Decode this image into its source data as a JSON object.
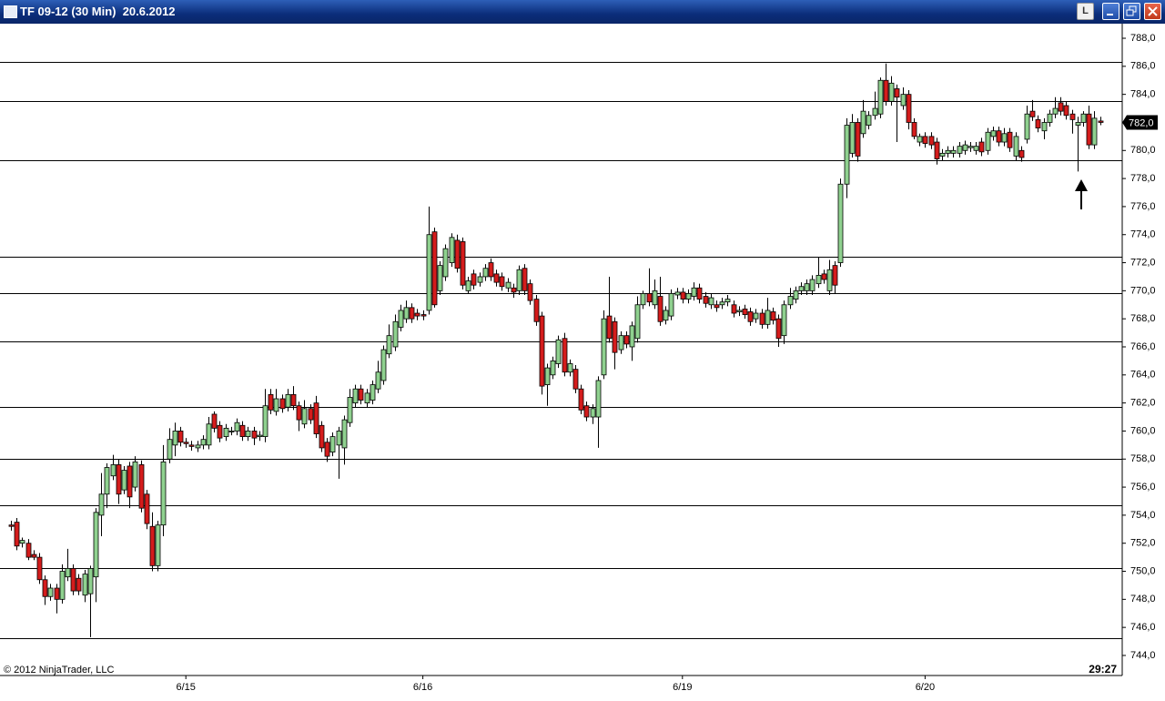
{
  "window": {
    "title": "TF 09-12 (30 Min)  20.6.2012",
    "button_label": "L"
  },
  "chart_data": {
    "type": "candlestick",
    "watermark": "© 2012 NinjaTrader, LLC",
    "time_remaining": "29:27",
    "up_color": "#8fd18f",
    "down_color": "#d41c1c",
    "categories": [
      null,
      null,
      null,
      null,
      null,
      null,
      null,
      null,
      null,
      null,
      null,
      null,
      null,
      null,
      null,
      null,
      null,
      null,
      null,
      null,
      null,
      null,
      null,
      null,
      null,
      null,
      null,
      null,
      null,
      null,
      null,
      "6/15",
      null,
      null,
      null,
      null,
      null,
      null,
      null,
      null,
      null,
      null,
      null,
      null,
      null,
      null,
      null,
      null,
      null,
      null,
      null,
      null,
      null,
      null,
      null,
      null,
      null,
      null,
      null,
      null,
      null,
      null,
      null,
      null,
      null,
      null,
      null,
      null,
      null,
      null,
      null,
      null,
      null,
      "6/16",
      null,
      null,
      null,
      null,
      null,
      null,
      null,
      null,
      null,
      null,
      null,
      null,
      null,
      null,
      null,
      null,
      null,
      null,
      null,
      null,
      null,
      null,
      null,
      null,
      null,
      null,
      null,
      null,
      null,
      null,
      null,
      null,
      null,
      null,
      null,
      null,
      null,
      null,
      null,
      null,
      null,
      null,
      null,
      null,
      null,
      "6/19",
      null,
      null,
      null,
      null,
      null,
      null,
      null,
      null,
      null,
      null,
      null,
      null,
      null,
      null,
      null,
      null,
      null,
      null,
      null,
      null,
      null,
      null,
      null,
      null,
      null,
      null,
      null,
      null,
      null,
      null,
      null,
      null,
      null,
      null,
      null,
      null,
      null,
      null,
      null,
      null,
      null,
      null,
      "6/20",
      null,
      null,
      null,
      null,
      null,
      null,
      null,
      null,
      null,
      null,
      null,
      null,
      null,
      null,
      null,
      null,
      null,
      null,
      null,
      null,
      null,
      null,
      null,
      null,
      null,
      null,
      null,
      null,
      null,
      null,
      null
    ],
    "open": [
      753.3,
      753.5,
      752.0,
      752.0,
      751.2,
      751.0,
      749.4,
      748.2,
      748.8,
      748.0,
      749.6,
      750.2,
      749.5,
      748.3,
      748.4,
      749.6,
      754.0,
      755.5,
      756.8,
      757.6,
      755.8,
      757.5,
      756.0,
      757.6,
      755.5,
      753.2,
      750.4,
      753.3,
      758.0,
      759.0,
      760.0,
      759.2,
      759.0,
      758.8,
      759.0,
      759.0,
      761.2,
      760.4,
      759.6,
      760.0,
      760.0,
      760.4,
      759.6,
      760.0,
      759.6,
      759.6,
      762.6,
      761.4,
      762.3,
      761.7,
      762.6,
      761.8,
      760.5,
      761.6,
      762.0,
      760.4,
      759.2,
      758.5,
      759.0,
      758.8,
      760.6,
      762.0,
      763.0,
      762.0,
      762.2,
      763.0,
      763.6,
      765.5,
      766.0,
      767.4,
      768.0,
      768.8,
      768.4,
      768.3,
      768.6,
      774.2,
      770.0,
      771.0,
      772.0,
      773.6,
      773.5,
      770.0,
      771.2,
      770.6,
      771.0,
      772.0,
      771.2,
      771.0,
      770.2,
      770.2,
      770.0,
      771.6,
      770.5,
      769.4,
      768.2,
      763.3,
      764.0,
      764.8,
      766.6,
      764.2,
      764.4,
      763.0,
      761.8,
      761.0,
      761.0,
      764.0,
      768.2,
      767.8,
      765.8,
      766.8,
      766.0,
      766.6,
      769.0,
      769.8,
      769.0,
      769.6,
      767.9,
      768.2,
      769.7,
      769.9,
      769.4,
      769.6,
      770.2,
      769.6,
      769.0,
      769.0,
      769.0,
      769.2,
      769.0,
      768.5,
      768.7,
      768.5,
      768.0,
      768.4,
      767.6,
      768.5,
      768.0,
      766.8,
      769.0,
      769.4,
      770.0,
      770.0,
      770.0,
      770.5,
      771.2,
      770.0,
      771.8,
      772.0,
      777.6,
      779.8,
      782.0,
      781.2,
      781.8,
      782.5,
      782.6,
      785.0,
      783.5,
      784.4,
      783.2,
      784.0,
      782.0,
      780.6,
      781.0,
      781.0,
      780.6,
      779.6,
      779.8,
      779.8,
      779.8,
      780.0,
      780.2,
      780.0,
      780.6,
      780.0,
      781.0,
      781.4,
      780.6,
      781.3,
      779.6,
      780.0,
      780.8,
      782.8,
      782.2,
      781.4,
      782.0,
      782.6,
      783.4,
      783.2,
      782.6,
      781.8,
      782.0,
      782.6,
      780.4,
      782.1
    ],
    "high": [
      753.6,
      753.8,
      752.4,
      752.3,
      751.5,
      751.3,
      749.7,
      749.1,
      749.1,
      750.5,
      751.6,
      750.5,
      749.8,
      750.1,
      750.4,
      754.5,
      757.0,
      757.7,
      758.3,
      758.0,
      757.5,
      757.8,
      758.2,
      757.9,
      755.8,
      754.2,
      753.6,
      759.0,
      760.2,
      760.6,
      760.3,
      759.5,
      759.3,
      759.3,
      759.7,
      761.0,
      761.4,
      760.7,
      760.5,
      760.3,
      760.9,
      760.7,
      760.3,
      760.3,
      760.0,
      763.0,
      763.0,
      763.0,
      762.6,
      763.0,
      763.2,
      762.1,
      762.2,
      761.9,
      762.5,
      760.7,
      759.5,
      759.9,
      760.3,
      761.1,
      763.0,
      763.3,
      763.3,
      763.0,
      763.6,
      765.0,
      766.1,
      767.6,
      768.3,
      769.0,
      769.3,
      769.1,
      768.7,
      768.6,
      776.0,
      774.5,
      772.1,
      773.3,
      774.1,
      774.0,
      773.8,
      771.0,
      771.5,
      771.3,
      771.9,
      772.3,
      771.5,
      771.3,
      770.9,
      770.5,
      771.8,
      771.9,
      770.8,
      769.7,
      768.5,
      764.8,
      765.3,
      766.8,
      767.0,
      765.1,
      764.7,
      763.3,
      762.1,
      761.9,
      763.9,
      768.6,
      771.0,
      768.1,
      767.1,
      767.1,
      767.8,
      769.6,
      770.0,
      771.6,
      770.8,
      771.0,
      768.9,
      770.1,
      770.2,
      770.2,
      770.1,
      770.6,
      770.5,
      769.9,
      769.8,
      769.3,
      769.5,
      769.7,
      769.3,
      768.9,
      769.0,
      768.8,
      768.7,
      768.7,
      769.5,
      768.8,
      768.3,
      769.3,
      770.2,
      770.3,
      770.6,
      770.8,
      771.1,
      772.4,
      771.5,
      772.2,
      772.1,
      778.0,
      782.3,
      782.6,
      782.3,
      783.6,
      782.8,
      784.2,
      785.2,
      786.2,
      785.3,
      784.7,
      784.5,
      784.3,
      782.3,
      781.2,
      781.3,
      781.3,
      780.9,
      780.1,
      780.3,
      780.3,
      780.6,
      780.7,
      780.6,
      780.6,
      780.9,
      781.6,
      781.7,
      781.7,
      781.6,
      781.6,
      781.3,
      780.3,
      783.2,
      783.6,
      782.5,
      782.3,
      782.9,
      783.8,
      783.8,
      783.5,
      782.9,
      782.4,
      782.8,
      783.2,
      782.8,
      782.4
    ],
    "low": [
      752.9,
      751.5,
      751.7,
      750.8,
      750.8,
      749.1,
      747.6,
      747.9,
      747.0,
      747.7,
      749.3,
      748.3,
      748.3,
      747.8,
      745.3,
      747.8,
      752.5,
      754.5,
      756.5,
      754.8,
      755.5,
      754.5,
      755.7,
      754.2,
      753.0,
      750.0,
      750.0,
      752.5,
      757.7,
      758.2,
      758.9,
      758.8,
      758.6,
      758.5,
      758.7,
      758.7,
      759.9,
      759.2,
      759.3,
      759.7,
      759.7,
      759.3,
      759.3,
      759.0,
      759.3,
      759.2,
      761.2,
      761.1,
      761.3,
      761.4,
      761.5,
      760.0,
      760.2,
      760.5,
      759.5,
      758.5,
      757.8,
      758.2,
      756.6,
      757.6,
      760.3,
      761.7,
      761.9,
      761.7,
      761.9,
      762.7,
      763.3,
      765.2,
      765.7,
      767.1,
      767.7,
      767.7,
      767.9,
      767.9,
      768.3,
      768.8,
      769.7,
      770.7,
      771.7,
      771.3,
      770.1,
      769.8,
      770.1,
      770.3,
      770.7,
      770.7,
      770.3,
      770.0,
      769.9,
      769.5,
      769.7,
      769.7,
      769.0,
      767.5,
      762.6,
      761.8,
      763.7,
      764.5,
      763.9,
      763.9,
      762.7,
      761.2,
      760.7,
      760.5,
      758.8,
      763.7,
      766.3,
      764.4,
      765.5,
      765.9,
      765.0,
      766.3,
      768.7,
      768.9,
      768.7,
      767.5,
      767.6,
      767.9,
      769.4,
      769.1,
      769.1,
      769.3,
      769.1,
      768.8,
      768.7,
      768.5,
      768.7,
      768.9,
      768.1,
      768.2,
      768.0,
      767.5,
      767.7,
      767.3,
      767.3,
      767.6,
      766.0,
      766.2,
      768.7,
      769.1,
      769.7,
      769.7,
      769.7,
      770.2,
      770.5,
      769.7,
      769.8,
      771.7,
      776.6,
      779.5,
      779.2,
      780.9,
      781.5,
      782.2,
      782.3,
      783.2,
      783.2,
      780.6,
      782.9,
      781.5,
      780.8,
      780.3,
      780.2,
      780.1,
      779.0,
      779.3,
      779.5,
      779.5,
      779.5,
      779.7,
      779.9,
      779.7,
      779.6,
      779.7,
      780.7,
      780.3,
      780.3,
      779.9,
      779.3,
      779.2,
      780.5,
      782.1,
      781.3,
      780.8,
      781.7,
      782.3,
      782.5,
      782.2,
      781.2,
      778.5,
      781.7,
      780.1,
      780.1,
      781.8
    ],
    "close": [
      753.2,
      751.8,
      752.2,
      751.0,
      751.0,
      749.4,
      748.2,
      748.8,
      748.0,
      750.0,
      750.2,
      748.6,
      748.6,
      749.8,
      750.2,
      754.2,
      755.5,
      757.4,
      757.6,
      755.5,
      757.2,
      755.3,
      757.8,
      754.5,
      753.4,
      750.4,
      753.3,
      757.8,
      759.4,
      760.0,
      759.2,
      759.1,
      758.9,
      759.0,
      759.4,
      760.5,
      760.2,
      759.5,
      760.2,
      760.0,
      760.6,
      759.6,
      760.0,
      759.5,
      759.7,
      761.8,
      761.5,
      762.3,
      761.6,
      762.6,
      761.8,
      760.8,
      761.6,
      760.8,
      759.8,
      758.8,
      758.2,
      759.6,
      760.0,
      760.8,
      762.4,
      763.0,
      762.2,
      762.7,
      763.3,
      764.2,
      765.8,
      766.8,
      767.8,
      768.6,
      768.8,
      768.0,
      768.2,
      768.2,
      774.0,
      769.0,
      771.8,
      773.0,
      773.8,
      771.6,
      770.4,
      770.7,
      770.4,
      771.0,
      771.6,
      771.0,
      770.6,
      770.3,
      770.6,
      769.9,
      771.5,
      770.0,
      769.3,
      767.8,
      763.2,
      764.5,
      765.0,
      766.5,
      764.2,
      764.8,
      763.0,
      761.5,
      761.0,
      761.6,
      763.6,
      768.0,
      766.6,
      765.6,
      766.8,
      766.2,
      767.5,
      769.0,
      769.8,
      769.2,
      770.0,
      767.8,
      768.6,
      769.8,
      769.9,
      769.4,
      769.8,
      770.2,
      769.4,
      769.1,
      769.5,
      768.8,
      769.2,
      769.4,
      768.4,
      768.6,
      768.3,
      767.8,
      768.4,
      767.6,
      768.6,
      767.9,
      766.6,
      769.0,
      769.6,
      770.0,
      770.3,
      770.5,
      770.8,
      771.1,
      770.8,
      771.5,
      770.4,
      777.6,
      781.8,
      782.0,
      779.6,
      782.8,
      782.5,
      783.0,
      785.0,
      783.5,
      784.8,
      783.8,
      784.0,
      782.0,
      781.0,
      781.0,
      780.5,
      780.4,
      779.4,
      779.8,
      780.0,
      780.0,
      780.3,
      780.4,
      780.3,
      780.3,
      779.9,
      781.3,
      781.4,
      780.6,
      781.2,
      780.2,
      781.0,
      779.5,
      782.6,
      782.4,
      781.6,
      782.0,
      782.6,
      783.0,
      782.8,
      782.5,
      782.2,
      782.0,
      782.6,
      780.4,
      782.3,
      782.0
    ],
    "horizontal_lines": [
      786.3,
      783.5,
      779.3,
      772.4,
      769.8,
      766.4,
      761.7,
      758.0,
      754.7,
      750.2,
      745.2
    ],
    "last_price": {
      "value": 782,
      "label": "782,0"
    },
    "ylim": [
      742.57,
      789.04
    ],
    "yticks": [
      {
        "value": 744,
        "label": "744,0"
      },
      {
        "value": 746,
        "label": "746,0"
      },
      {
        "value": 748,
        "label": "748,0"
      },
      {
        "value": 750,
        "label": "750,0"
      },
      {
        "value": 752,
        "label": "752,0"
      },
      {
        "value": 754,
        "label": "754,0"
      },
      {
        "value": 756,
        "label": "756,0"
      },
      {
        "value": 758,
        "label": "758,0"
      },
      {
        "value": 760,
        "label": "760,0"
      },
      {
        "value": 762,
        "label": "762,0"
      },
      {
        "value": 764,
        "label": "764,0"
      },
      {
        "value": 766,
        "label": "766,0"
      },
      {
        "value": 768,
        "label": "768,0"
      },
      {
        "value": 770,
        "label": "770,0"
      },
      {
        "value": 772,
        "label": "772,0"
      },
      {
        "value": 774,
        "label": "774,0"
      },
      {
        "value": 776,
        "label": "776,0"
      },
      {
        "value": 778,
        "label": "778,0"
      },
      {
        "value": 780,
        "label": "780,0"
      },
      {
        "value": 782,
        "label": "782,0"
      },
      {
        "value": 784,
        "label": "784,0"
      },
      {
        "value": 786,
        "label": "786,0"
      },
      {
        "value": 788,
        "label": "788,0"
      }
    ]
  }
}
